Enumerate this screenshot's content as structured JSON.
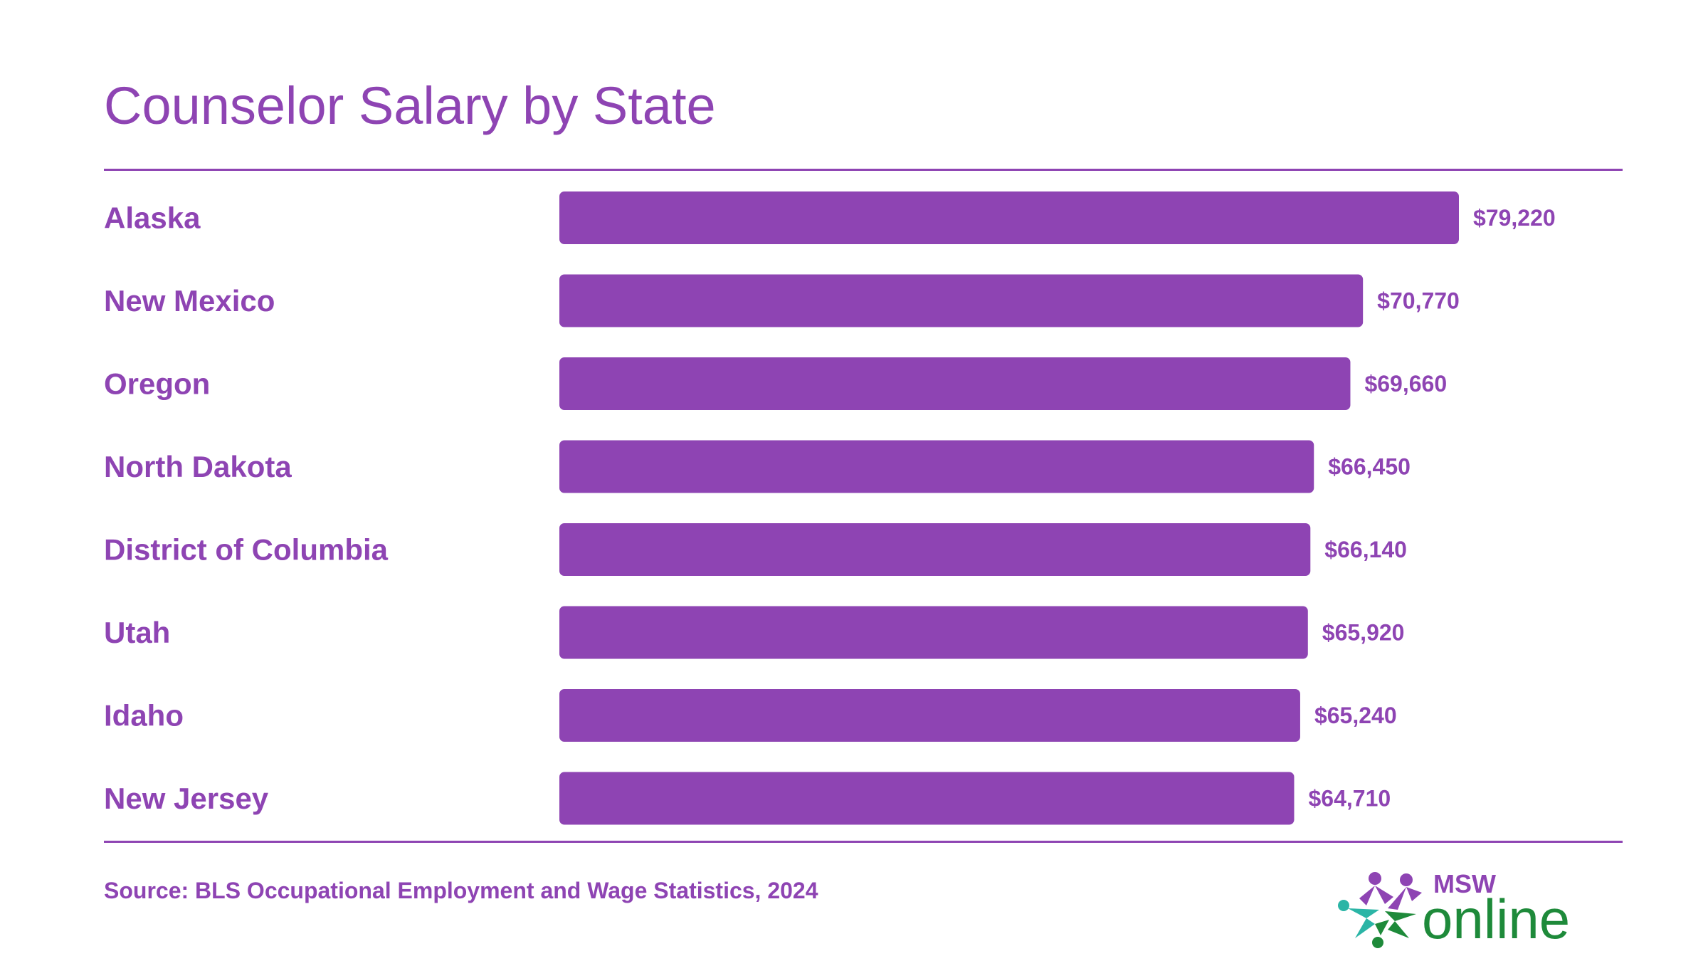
{
  "title": "Counselor Salary by State",
  "source": "Source: BLS Occupational Employment and Wage Statistics, 2024",
  "logo": {
    "top_text": "MSW",
    "main_text": "online",
    "icon": "star-people-icon"
  },
  "colors": {
    "accent": "#8e44b3",
    "bar": "#8e44b3",
    "logo_green": "#1e8a3a",
    "logo_teal": "#2bb5a6"
  },
  "chart_data": {
    "type": "bar",
    "orientation": "horizontal",
    "title": "Counselor Salary by State",
    "xlabel": "",
    "ylabel": "",
    "grid": false,
    "legend": "none",
    "categories": [
      "Alaska",
      "New Mexico",
      "Oregon",
      "North Dakota",
      "District of Columbia",
      "Utah",
      "Idaho",
      "New Jersey"
    ],
    "values": [
      79220,
      70770,
      69660,
      66450,
      66140,
      65920,
      65240,
      64710
    ],
    "value_labels": [
      "$79,220",
      "$70,770",
      "$69,660",
      "$66,450",
      "$66,140",
      "$65,920",
      "$65,240",
      "$64,710"
    ],
    "xlim": [
      0,
      79220
    ]
  }
}
